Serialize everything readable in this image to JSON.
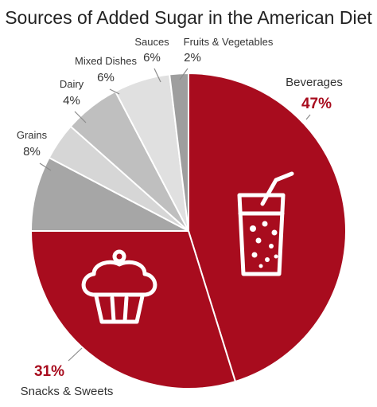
{
  "chart_data": {
    "type": "pie",
    "title": "Sources of Added Sugar in the American Diet",
    "slices": [
      {
        "label": "Beverages",
        "value": 47,
        "value_label": "47%",
        "color": "#a80c1e",
        "icon": "drink-glass-icon"
      },
      {
        "label": "Snacks & Sweets",
        "value": 31,
        "value_label": "31%",
        "color": "#a80c1e",
        "icon": "cupcake-icon"
      },
      {
        "label": "Grains",
        "value": 8,
        "value_label": "8%",
        "color": "#a6a6a6"
      },
      {
        "label": "Dairy",
        "value": 4,
        "value_label": "4%",
        "color": "#d6d6d6"
      },
      {
        "label": "Mixed Dishes",
        "value": 6,
        "value_label": "6%",
        "color": "#bfbfbf"
      },
      {
        "label": "Sauces",
        "value": 6,
        "value_label": "6%",
        "color": "#e0e0e0"
      },
      {
        "label": "Fruits & Vegetables",
        "value": 2,
        "value_label": "2%",
        "color": "#9e9e9e"
      }
    ],
    "start_angle": "12 o'clock",
    "direction": "clockwise",
    "highlight_color": "#a80c1e"
  }
}
